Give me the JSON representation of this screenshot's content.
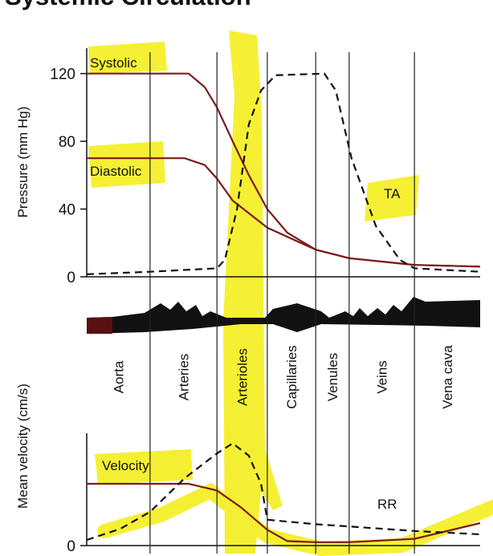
{
  "chart_data": [
    {
      "type": "line",
      "title": "Systemic Circulation",
      "ylabel": "Pressure (mm Hg)",
      "xlim": [
        0,
        100
      ],
      "ylim": [
        0,
        135
      ],
      "yticks": [
        0,
        40,
        80,
        120
      ],
      "series": [
        {
          "name": "Systolic",
          "color": "#7b1c1c",
          "dashed": false,
          "x": [
            0,
            25.9,
            30,
            33.1,
            37.1,
            41.2,
            45.9,
            51,
            58.2,
            66.7,
            83.3,
            100
          ],
          "values": [
            120,
            120,
            112,
            100,
            80,
            60,
            40,
            26,
            16,
            11,
            7,
            6
          ]
        },
        {
          "name": "Diastolic",
          "color": "#7b1c1c",
          "dashed": false,
          "x": [
            0,
            24.9,
            30,
            33.1,
            37.1,
            45.9,
            58.2,
            66.7,
            83.3,
            100
          ],
          "values": [
            70,
            70,
            66,
            58,
            45,
            29,
            16,
            11,
            7,
            6
          ]
        },
        {
          "name": "TA",
          "color": "#111111",
          "dashed": true,
          "x": [
            0,
            16.1,
            33.1,
            35.1,
            38.2,
            41.2,
            44.3,
            48,
            60.4,
            63.3,
            67.3,
            73.5,
            79.6,
            83.3,
            100
          ],
          "values": [
            1.5,
            3,
            5,
            10,
            40,
            90,
            110,
            119,
            120,
            110,
            70,
            30,
            10,
            5,
            3
          ]
        }
      ]
    },
    {
      "type": "line",
      "ylabel": "Mean velocity (cm/s)",
      "xlim": [
        0,
        100
      ],
      "ylim": [
        0,
        100
      ],
      "yticks": [
        0
      ],
      "regions": {
        "labels": [
          "Aorta",
          "Arteries",
          "Arterioles",
          "Capillaries",
          "Venules",
          "Veins",
          "Vena cava"
        ],
        "dividers": [
          16.1,
          33.1,
          45.9,
          58.2,
          66.7,
          83.3
        ]
      },
      "series": [
        {
          "name": "Velocity",
          "color": "#7b1c1c",
          "dashed": false,
          "x": [
            0,
            25.9,
            33.1,
            39.2,
            45.9,
            51,
            58.2,
            66.7,
            83.3,
            100
          ],
          "values": [
            55,
            55,
            49,
            34,
            14,
            4,
            3,
            3,
            6,
            20
          ]
        },
        {
          "name": "RR",
          "color": "#111111",
          "dashed": true,
          "x": [
            0,
            8.6,
            16.1,
            24.9,
            33.1,
            37.1,
            41.2,
            44.3,
            45.9,
            58.2,
            66.7,
            83.3,
            100
          ],
          "values": [
            5,
            15,
            30,
            60,
            82,
            91,
            80,
            55,
            23,
            19,
            17,
            13,
            10
          ]
        }
      ]
    }
  ]
}
